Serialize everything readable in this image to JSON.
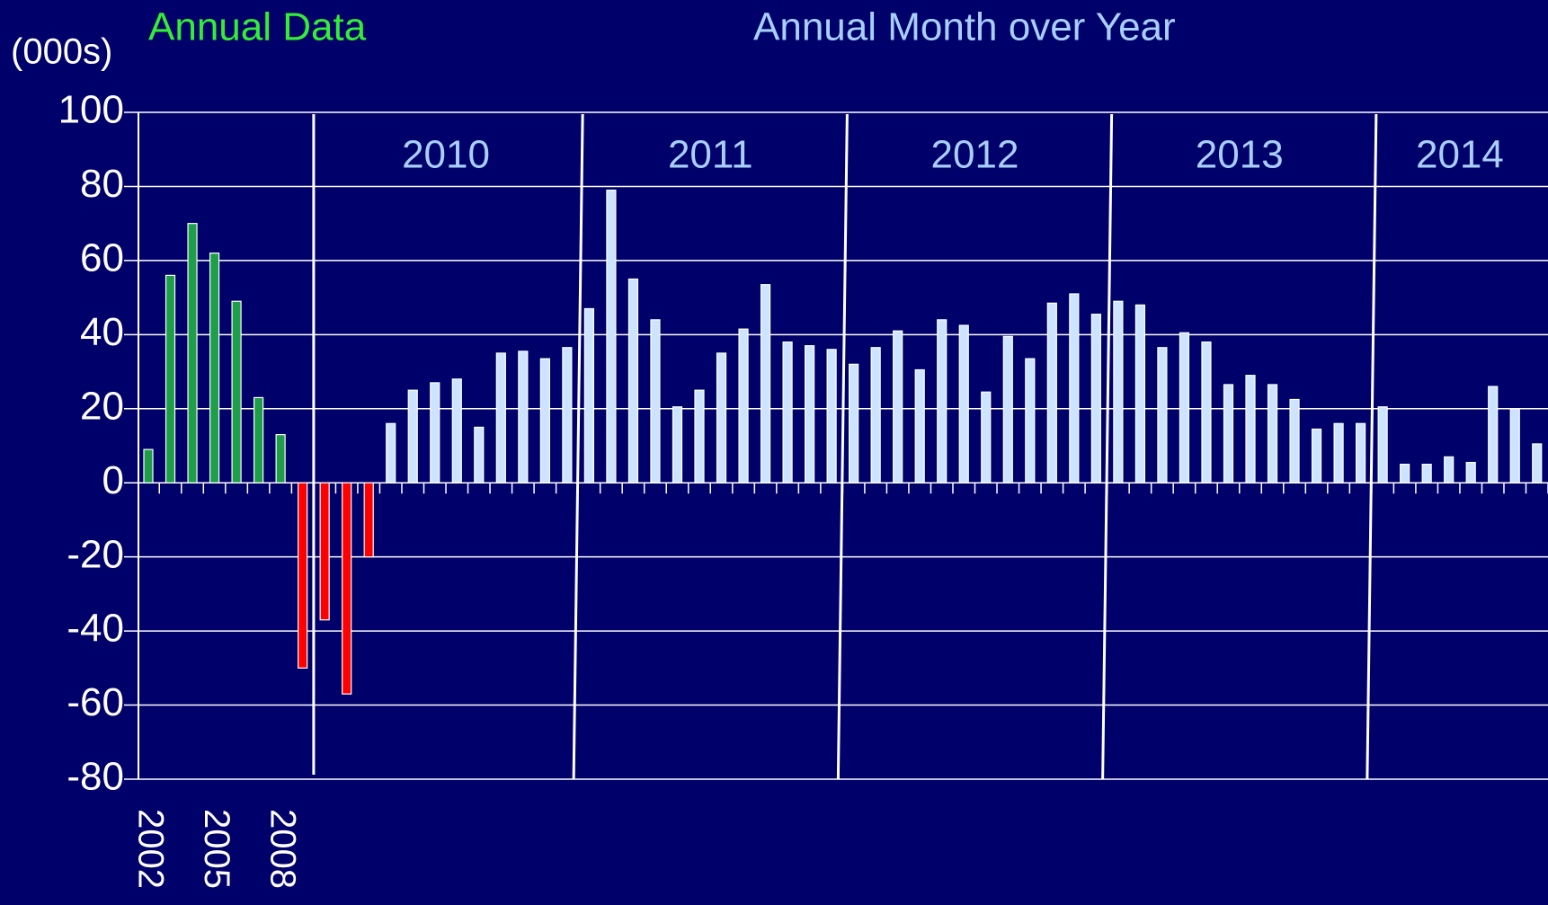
{
  "chart_data": {
    "type": "bar",
    "y_label": "(000s)",
    "categories": [
      "2002",
      null,
      null,
      "2005",
      null,
      null,
      "2008",
      null,
      null,
      null,
      null,
      null,
      null,
      null,
      null,
      null,
      null,
      null,
      null,
      null,
      null,
      null,
      null,
      null,
      null,
      null,
      null,
      null,
      null,
      null,
      null,
      null,
      null,
      null,
      null,
      null,
      null,
      null,
      null,
      null,
      null,
      null,
      null,
      null,
      null,
      null,
      null,
      null,
      null,
      null,
      null,
      null,
      null,
      null,
      null,
      null,
      null,
      null,
      null,
      null,
      null,
      null,
      null,
      null
    ],
    "series": [
      {
        "name": "Annual Data",
        "color": "#1f9e4a",
        "label_color": "#33ee33",
        "values": [
          9,
          56,
          70,
          62,
          49,
          23,
          13,
          -50,
          null,
          null,
          null,
          null,
          null,
          null,
          null,
          null,
          null,
          null,
          null,
          null,
          null,
          null,
          null,
          null,
          null,
          null,
          null,
          null,
          null,
          null,
          null,
          null,
          null,
          null,
          null,
          null,
          null,
          null,
          null,
          null,
          null,
          null,
          null,
          null,
          null,
          null,
          null,
          null,
          null,
          null,
          null,
          null,
          null,
          null,
          null,
          null,
          null,
          null,
          null,
          null,
          null,
          null,
          null,
          null
        ]
      },
      {
        "name": "Annual Month over Year",
        "color": "#cce4ff",
        "label_color": "#a8cfff",
        "values": [
          null,
          null,
          null,
          null,
          null,
          null,
          null,
          null,
          -37,
          -57,
          -20,
          16,
          25,
          27,
          28,
          15,
          35,
          35.5,
          33.5,
          36.5,
          47,
          79,
          55,
          44,
          20.5,
          25,
          35,
          41.5,
          53.5,
          38,
          37,
          36,
          32,
          36.5,
          41,
          30.5,
          44,
          42.5,
          24.5,
          39.5,
          33.5,
          48.5,
          51,
          45.5,
          49,
          48,
          36.5,
          40.5,
          38,
          26.5,
          29,
          26.5,
          22.5,
          14.5,
          16,
          16,
          20.5,
          5,
          5,
          7,
          5.5,
          26,
          20,
          10.5
        ]
      }
    ],
    "negative_color": "#ff0000",
    "year_labels": [
      "2010",
      "2011",
      "2012",
      "2013",
      "2014"
    ],
    "ylim": [
      -80,
      100
    ],
    "yticks": [
      -80,
      -60,
      -40,
      -20,
      0,
      20,
      40,
      60,
      80,
      100
    ],
    "grid": true
  }
}
